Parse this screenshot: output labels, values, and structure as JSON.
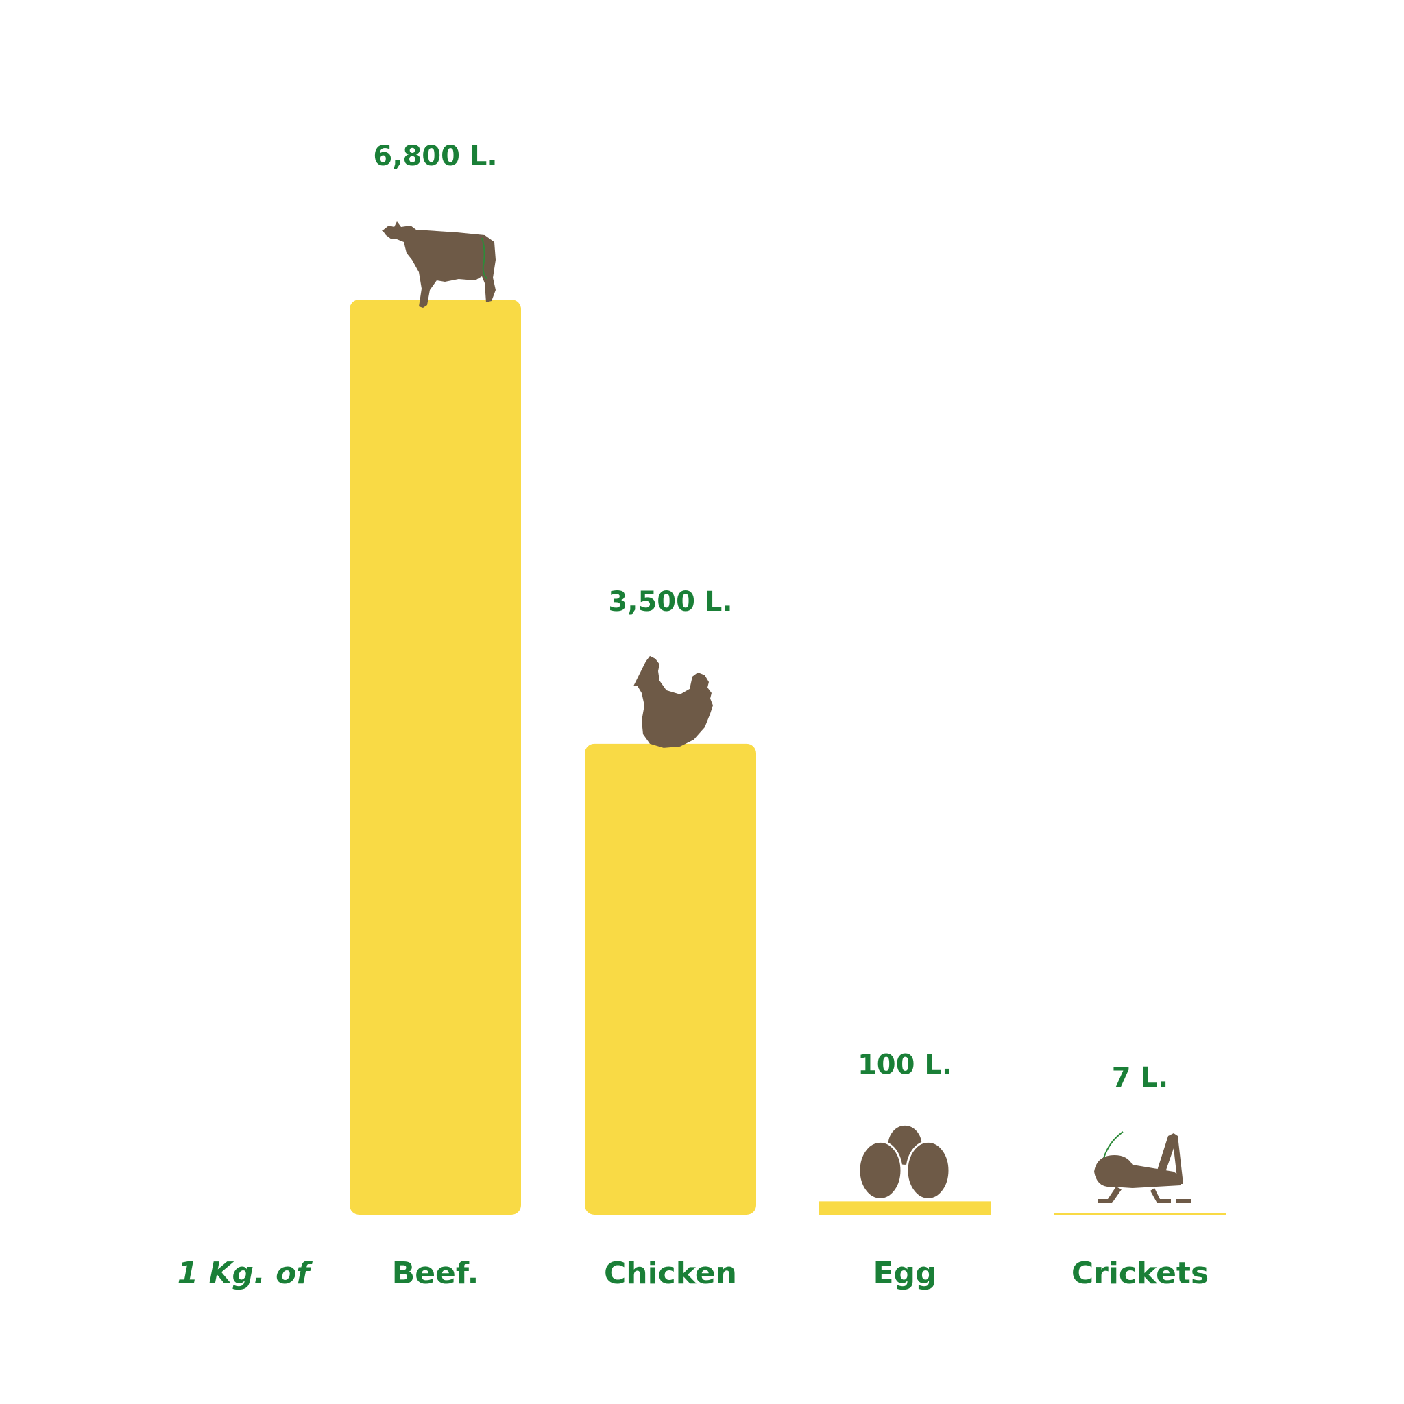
{
  "chart_data": {
    "type": "bar",
    "prefix_label": "1 Kg. of",
    "categories": [
      "Beef.",
      "Chicken",
      "Egg",
      "Crickets"
    ],
    "values": [
      6800,
      3500,
      100,
      7
    ],
    "value_labels": [
      "6,800 L.",
      "3,500 L.",
      "100 L.",
      "7 L."
    ],
    "icons": [
      "cow-icon",
      "chicken-icon",
      "eggs-icon",
      "cricket-icon"
    ],
    "ylim": [
      0,
      6800
    ],
    "grid": false,
    "legend": "none"
  },
  "colors": {
    "bar": "#f9da45",
    "text": "#1a7f37",
    "icon": "#6e5a47"
  }
}
